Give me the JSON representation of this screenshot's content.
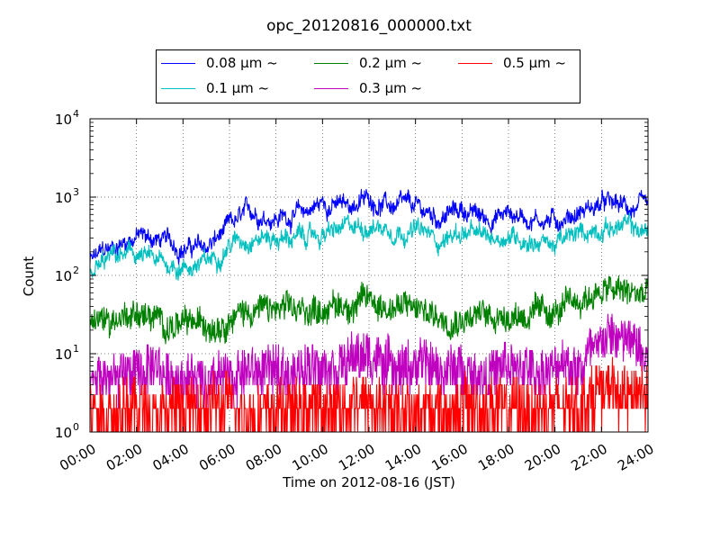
{
  "chart_data": {
    "type": "line",
    "title": "opc_20120816_000000.txt",
    "xlabel": "Time on 2012-08-16 (JST)",
    "ylabel": "Count",
    "xlim": [
      "00:00",
      "24:00"
    ],
    "ylim": [
      1,
      10000
    ],
    "yscale": "log",
    "grid": true,
    "legend_position": "top-center",
    "x_ticks": [
      "00:00",
      "02:00",
      "04:00",
      "06:00",
      "08:00",
      "10:00",
      "12:00",
      "14:00",
      "16:00",
      "18:00",
      "20:00",
      "22:00",
      "24:00"
    ],
    "y_ticks": [
      {
        "value": 1,
        "base": "10",
        "exp": "0"
      },
      {
        "value": 10,
        "base": "10",
        "exp": "1"
      },
      {
        "value": 100,
        "base": "10",
        "exp": "2"
      },
      {
        "value": 1000,
        "base": "10",
        "exp": "3"
      },
      {
        "value": 10000,
        "base": "10",
        "exp": "4"
      }
    ],
    "x": [
      "00:00",
      "01:00",
      "02:00",
      "03:00",
      "04:00",
      "05:00",
      "06:00",
      "07:00",
      "08:00",
      "09:00",
      "10:00",
      "11:00",
      "12:00",
      "13:00",
      "14:00",
      "15:00",
      "16:00",
      "17:00",
      "18:00",
      "19:00",
      "20:00",
      "21:00",
      "22:00",
      "23:00",
      "24:00"
    ],
    "series": [
      {
        "name": "0.08 μm ~",
        "color": "#0000ff",
        "noise": 0.08,
        "values": [
          150,
          230,
          330,
          280,
          230,
          220,
          400,
          650,
          560,
          600,
          850,
          750,
          950,
          750,
          700,
          550,
          700,
          530,
          620,
          550,
          500,
          650,
          800,
          750,
          650
        ]
      },
      {
        "name": "0.1 μm ~",
        "color": "#00bfbf",
        "noise": 0.08,
        "values": [
          100,
          170,
          180,
          140,
          130,
          140,
          260,
          330,
          300,
          300,
          330,
          380,
          450,
          400,
          380,
          280,
          360,
          290,
          330,
          290,
          250,
          320,
          430,
          420,
          350
        ]
      },
      {
        "name": "0.2 μm ~",
        "color": "#008000",
        "noise": 0.15,
        "values": [
          25,
          28,
          35,
          25,
          22,
          24,
          30,
          38,
          35,
          33,
          40,
          42,
          48,
          40,
          38,
          30,
          32,
          30,
          33,
          32,
          33,
          45,
          65,
          60,
          55
        ]
      },
      {
        "name": "0.3 μm ~",
        "color": "#bf00bf",
        "noise": 0.3,
        "values": [
          4,
          5,
          6,
          5,
          5,
          5,
          5,
          6,
          6,
          6,
          8,
          8,
          9,
          7,
          7,
          6,
          6,
          6,
          6,
          6,
          6,
          7,
          18,
          14,
          12
        ]
      },
      {
        "name": "0.5 μm ~",
        "color": "#ff0000",
        "noise": 0.35,
        "values": [
          2,
          2,
          2,
          2,
          2,
          2,
          2,
          2,
          2,
          2,
          2,
          2,
          3,
          2,
          2,
          2,
          2,
          2,
          2,
          2,
          2,
          2,
          4,
          3,
          3
        ]
      }
    ]
  }
}
